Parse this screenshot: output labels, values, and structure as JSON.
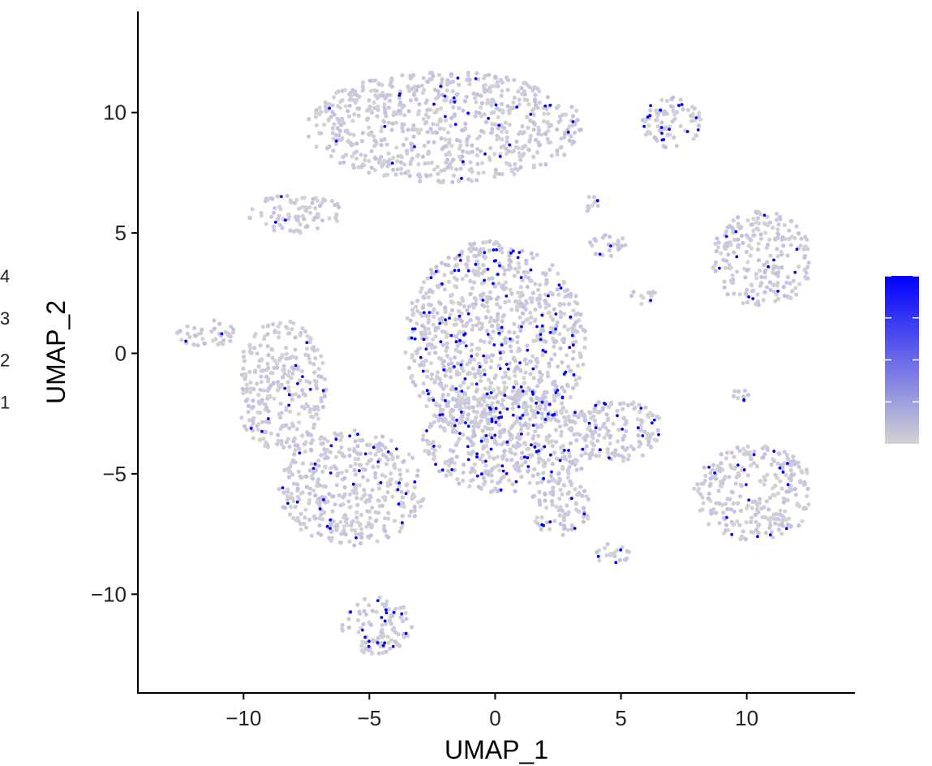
{
  "chart_data": {
    "type": "scatter",
    "title": "",
    "xlabel": "UMAP_1",
    "ylabel": "UMAP_2",
    "xlim": [
      -14.2,
      14.3
    ],
    "ylim": [
      -14.1,
      14.2
    ],
    "x_ticks": [
      -10,
      -5,
      0,
      5,
      10
    ],
    "x_tick_labels": [
      "−10",
      "−5",
      "0",
      "5",
      "10"
    ],
    "y_ticks": [
      -10,
      -5,
      0,
      5,
      10
    ],
    "y_tick_labels": [
      "−10",
      "−5",
      "0",
      "5",
      "10"
    ],
    "grid": false,
    "color_scale": {
      "low_color": "#d3d3d3",
      "high_color": "#0000ff",
      "min": 0,
      "max": 4,
      "tick_values": [
        1,
        2,
        3,
        4
      ],
      "tick_labels": [
        "1",
        "2",
        "3",
        "4"
      ],
      "legend_placement": "right"
    },
    "clusters": [
      {
        "cx": -2.0,
        "cy": 9.4,
        "rx": 5.5,
        "ry": 2.3,
        "high_fraction": 0.1
      },
      {
        "cx": 7.0,
        "cy": 9.6,
        "rx": 1.2,
        "ry": 1.1,
        "high_fraction": 0.45
      },
      {
        "cx": -7.9,
        "cy": 5.8,
        "rx": 1.9,
        "ry": 0.8,
        "high_fraction": 0.08
      },
      {
        "cx": 0.0,
        "cy": 0.5,
        "rx": 3.6,
        "ry": 4.2,
        "high_fraction": 0.32
      },
      {
        "cx": 0.5,
        "cy": -3.6,
        "rx": 3.5,
        "ry": 2.2,
        "high_fraction": 0.32
      },
      {
        "cx": -5.7,
        "cy": -5.6,
        "rx": 2.9,
        "ry": 2.4,
        "high_fraction": 0.18
      },
      {
        "cx": -8.5,
        "cy": -1.4,
        "rx": 1.8,
        "ry": 2.8,
        "high_fraction": 0.1
      },
      {
        "cx": -4.7,
        "cy": -11.3,
        "rx": 1.4,
        "ry": 1.2,
        "high_fraction": 0.4
      },
      {
        "cx": 4.8,
        "cy": -3.2,
        "rx": 1.9,
        "ry": 1.3,
        "high_fraction": 0.25
      },
      {
        "cx": 2.6,
        "cy": -6.4,
        "rx": 1.2,
        "ry": 1.2,
        "high_fraction": 0.18
      },
      {
        "cx": 10.6,
        "cy": 3.9,
        "rx": 2.0,
        "ry": 2.0,
        "high_fraction": 0.12
      },
      {
        "cx": 10.3,
        "cy": -5.8,
        "rx": 2.4,
        "ry": 2.0,
        "high_fraction": 0.14
      },
      {
        "cx": 4.6,
        "cy": -8.3,
        "rx": 0.8,
        "ry": 0.45,
        "high_fraction": 0.35
      },
      {
        "cx": 9.8,
        "cy": -1.7,
        "rx": 0.35,
        "ry": 0.35,
        "high_fraction": 0.5
      },
      {
        "cx": 4.4,
        "cy": 4.5,
        "rx": 0.8,
        "ry": 0.5,
        "high_fraction": 0.18
      },
      {
        "cx": 5.9,
        "cy": 2.3,
        "rx": 0.6,
        "ry": 0.35,
        "high_fraction": 0.18
      },
      {
        "cx": 3.8,
        "cy": 6.2,
        "rx": 0.4,
        "ry": 0.4,
        "high_fraction": 0.2
      },
      {
        "cx": -11.5,
        "cy": 0.8,
        "rx": 1.2,
        "ry": 0.6,
        "high_fraction": 0.12
      }
    ]
  }
}
